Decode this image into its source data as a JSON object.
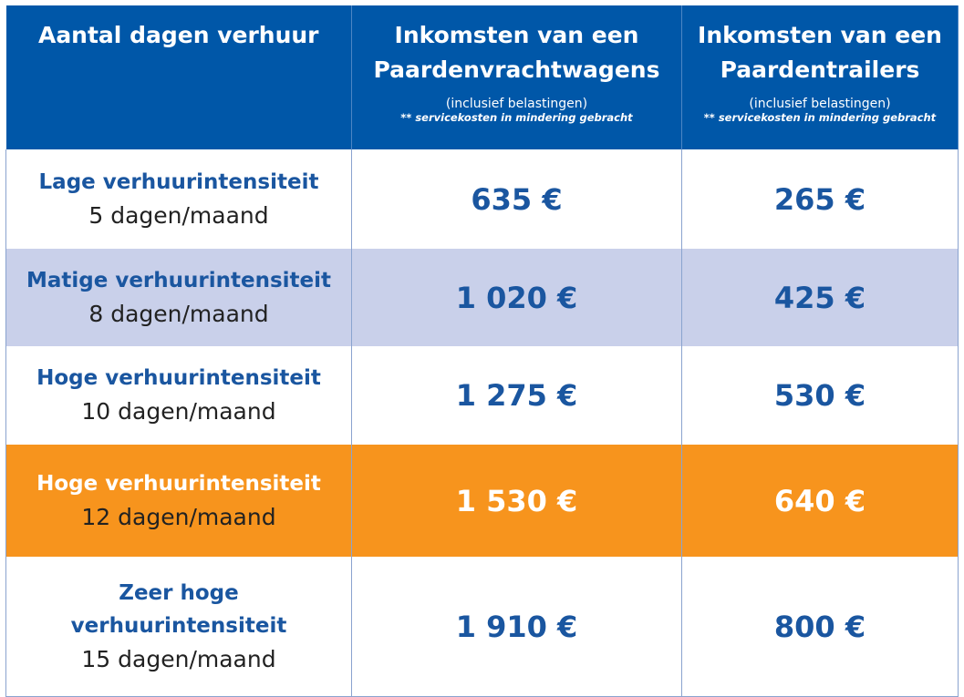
{
  "table": {
    "header": [
      {
        "title": "Aantal dagen verhuur"
      },
      {
        "title": "Inkomsten van een Paardenvrachtwagens",
        "note": "(inclusief belastingen)",
        "subnote": "** servicekosten in mindering gebracht"
      },
      {
        "title": "Inkomsten van een Paardentrailers",
        "note": "(inclusief belastingen)",
        "subnote": "** servicekosten in mindering gebracht"
      }
    ],
    "rows": [
      {
        "intensity": "Lage verhuurintensiteit",
        "days": "5 dagen/maand",
        "truck": "635 €",
        "trailer": "265 €"
      },
      {
        "intensity": "Matige verhuurintensiteit",
        "days": "8 dagen/maand",
        "truck": "1 020 €",
        "trailer": "425 €"
      },
      {
        "intensity": "Hoge verhuurintensiteit",
        "days": "10 dagen/maand",
        "truck": "1 275 €",
        "trailer": "530 €"
      },
      {
        "intensity": "Hoge verhuurintensiteit",
        "days": "12 dagen/maand",
        "truck": "1 530 €",
        "trailer": "640 €"
      },
      {
        "intensity": "Zeer hoge verhuurintensiteit",
        "days": "15 dagen/maand",
        "truck": "1 910 €",
        "trailer": "800 €"
      }
    ]
  }
}
